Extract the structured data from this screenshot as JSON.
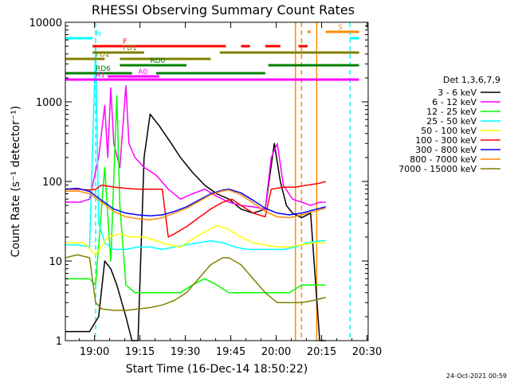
{
  "chart_data": {
    "type": "line",
    "title": "RHESSI Observing Summary Count Rates",
    "xlabel": "Start Time (16-Dec-14 18:50:22)",
    "ylabel": "Count Rate (s⁻¹ detector⁻¹)",
    "xaxis": {
      "unit": "minutes since 18:50:22",
      "range": [
        0,
        100
      ],
      "ticks": [
        {
          "v": 9.6333,
          "label": "19:00"
        },
        {
          "v": 24.6333,
          "label": "19:15"
        },
        {
          "v": 39.6333,
          "label": "19:30"
        },
        {
          "v": 54.6333,
          "label": "19:45"
        },
        {
          "v": 69.6333,
          "label": "20:00"
        },
        {
          "v": 84.6333,
          "label": "20:15"
        },
        {
          "v": 99.6333,
          "label": "20:30"
        }
      ]
    },
    "yaxis": {
      "scale": "log",
      "range": [
        1,
        10000
      ],
      "ticks": [
        {
          "v": 1,
          "label": "1"
        },
        {
          "v": 10,
          "label": "10"
        },
        {
          "v": 100,
          "label": "100"
        },
        {
          "v": 1000,
          "label": "1000"
        },
        {
          "v": 10000,
          "label": "10000"
        }
      ]
    },
    "legend": {
      "title": "Det 1,3,6,7,9",
      "placement": "right"
    },
    "series": [
      {
        "name": "3 - 6 keV",
        "color": "#000000",
        "points": [
          [
            0,
            1.3
          ],
          [
            8,
            1.3
          ],
          [
            11,
            2
          ],
          [
            13,
            10
          ],
          [
            15,
            8
          ],
          [
            17,
            5
          ],
          [
            20,
            2
          ],
          [
            22,
            1
          ],
          [
            24,
            1
          ],
          [
            26,
            200
          ],
          [
            28,
            700
          ],
          [
            31,
            500
          ],
          [
            35,
            300
          ],
          [
            38,
            200
          ],
          [
            42,
            130
          ],
          [
            46,
            90
          ],
          [
            50,
            70
          ],
          [
            54,
            60
          ],
          [
            58,
            45
          ],
          [
            62,
            40
          ],
          [
            66,
            45
          ],
          [
            69,
            300
          ],
          [
            71,
            100
          ],
          [
            73,
            50
          ],
          [
            75,
            40
          ],
          [
            78,
            35
          ],
          [
            81,
            40
          ],
          [
            84,
            1
          ],
          [
            86,
            1
          ]
        ]
      },
      {
        "name": "6 - 12 keV",
        "color": "#ff00ff",
        "points": [
          [
            0,
            55
          ],
          [
            5,
            55
          ],
          [
            8,
            60
          ],
          [
            11,
            200
          ],
          [
            13,
            900
          ],
          [
            14,
            200
          ],
          [
            15,
            1500
          ],
          [
            16,
            300
          ],
          [
            18,
            150
          ],
          [
            20,
            1600
          ],
          [
            21,
            300
          ],
          [
            23,
            200
          ],
          [
            26,
            150
          ],
          [
            30,
            120
          ],
          [
            34,
            80
          ],
          [
            38,
            60
          ],
          [
            42,
            70
          ],
          [
            46,
            80
          ],
          [
            50,
            65
          ],
          [
            54,
            55
          ],
          [
            58,
            50
          ],
          [
            62,
            48
          ],
          [
            66,
            45
          ],
          [
            68,
            200
          ],
          [
            70,
            300
          ],
          [
            72,
            90
          ],
          [
            75,
            60
          ],
          [
            78,
            55
          ],
          [
            81,
            50
          ],
          [
            84,
            55
          ],
          [
            86,
            55
          ]
        ]
      },
      {
        "name": "12 - 25 keV",
        "color": "#00ff00",
        "points": [
          [
            0,
            6
          ],
          [
            8,
            6
          ],
          [
            10,
            5
          ],
          [
            13,
            150
          ],
          [
            15,
            10
          ],
          [
            17,
            1200
          ],
          [
            18,
            50
          ],
          [
            20,
            5
          ],
          [
            23,
            4
          ],
          [
            26,
            4
          ],
          [
            30,
            4
          ],
          [
            34,
            4
          ],
          [
            38,
            4
          ],
          [
            42,
            5
          ],
          [
            46,
            6
          ],
          [
            50,
            5
          ],
          [
            54,
            4
          ],
          [
            58,
            4
          ],
          [
            62,
            4
          ],
          [
            66,
            4
          ],
          [
            70,
            4
          ],
          [
            74,
            4
          ],
          [
            78,
            5
          ],
          [
            82,
            5
          ],
          [
            86,
            5
          ]
        ]
      },
      {
        "name": "25 - 50 keV",
        "color": "#00ffff",
        "points": [
          [
            0,
            16
          ],
          [
            4,
            16
          ],
          [
            8,
            15
          ],
          [
            10,
            5000
          ],
          [
            11,
            30
          ],
          [
            13,
            17
          ],
          [
            16,
            14
          ],
          [
            20,
            14
          ],
          [
            24,
            15
          ],
          [
            28,
            15
          ],
          [
            32,
            14
          ],
          [
            36,
            15
          ],
          [
            40,
            16
          ],
          [
            44,
            17
          ],
          [
            48,
            18
          ],
          [
            52,
            17
          ],
          [
            56,
            15
          ],
          [
            60,
            14
          ],
          [
            64,
            14
          ],
          [
            68,
            14
          ],
          [
            72,
            14
          ],
          [
            76,
            15
          ],
          [
            80,
            17
          ],
          [
            84,
            18
          ],
          [
            86,
            18
          ]
        ]
      },
      {
        "name": "50 - 100 keV",
        "color": "#ffff00",
        "points": [
          [
            0,
            17
          ],
          [
            6,
            17
          ],
          [
            10,
            12
          ],
          [
            14,
            20
          ],
          [
            18,
            22
          ],
          [
            22,
            20
          ],
          [
            26,
            20
          ],
          [
            30,
            18
          ],
          [
            34,
            16
          ],
          [
            38,
            15
          ],
          [
            42,
            19
          ],
          [
            46,
            23
          ],
          [
            50,
            28
          ],
          [
            54,
            25
          ],
          [
            58,
            20
          ],
          [
            62,
            17
          ],
          [
            66,
            16
          ],
          [
            70,
            15
          ],
          [
            74,
            15
          ],
          [
            78,
            16
          ],
          [
            82,
            17
          ],
          [
            86,
            17
          ]
        ]
      },
      {
        "name": "100 - 300 keV",
        "color": "#ff0000",
        "points": [
          [
            0,
            80
          ],
          [
            4,
            80
          ],
          [
            8,
            78
          ],
          [
            10,
            80
          ],
          [
            12,
            90
          ],
          [
            16,
            85
          ],
          [
            20,
            82
          ],
          [
            24,
            80
          ],
          [
            28,
            80
          ],
          [
            32,
            80
          ],
          [
            34,
            20
          ],
          [
            36,
            22
          ],
          [
            40,
            27
          ],
          [
            44,
            35
          ],
          [
            48,
            45
          ],
          [
            52,
            55
          ],
          [
            55,
            60
          ],
          [
            58,
            50
          ],
          [
            62,
            40
          ],
          [
            66,
            36
          ],
          [
            68,
            80
          ],
          [
            72,
            85
          ],
          [
            76,
            85
          ],
          [
            80,
            90
          ],
          [
            84,
            95
          ],
          [
            86,
            100
          ]
        ]
      },
      {
        "name": "300 - 800 keV",
        "color": "#0000ff",
        "points": [
          [
            0,
            80
          ],
          [
            4,
            82
          ],
          [
            8,
            75
          ],
          [
            12,
            58
          ],
          [
            16,
            45
          ],
          [
            20,
            40
          ],
          [
            24,
            38
          ],
          [
            28,
            37
          ],
          [
            32,
            38
          ],
          [
            36,
            42
          ],
          [
            40,
            48
          ],
          [
            44,
            58
          ],
          [
            48,
            70
          ],
          [
            52,
            78
          ],
          [
            54,
            80
          ],
          [
            58,
            72
          ],
          [
            62,
            58
          ],
          [
            66,
            46
          ],
          [
            70,
            40
          ],
          [
            74,
            38
          ],
          [
            78,
            40
          ],
          [
            82,
            44
          ],
          [
            86,
            48
          ]
        ]
      },
      {
        "name": "800 - 7000 keV",
        "color": "#ff8c00",
        "points": [
          [
            0,
            75
          ],
          [
            4,
            76
          ],
          [
            8,
            70
          ],
          [
            12,
            55
          ],
          [
            16,
            42
          ],
          [
            20,
            36
          ],
          [
            24,
            34
          ],
          [
            28,
            33
          ],
          [
            32,
            35
          ],
          [
            36,
            40
          ],
          [
            40,
            46
          ],
          [
            44,
            56
          ],
          [
            48,
            68
          ],
          [
            52,
            76
          ],
          [
            54,
            78
          ],
          [
            58,
            68
          ],
          [
            62,
            54
          ],
          [
            66,
            42
          ],
          [
            70,
            36
          ],
          [
            74,
            35
          ],
          [
            78,
            38
          ],
          [
            82,
            42
          ],
          [
            86,
            46
          ]
        ]
      },
      {
        "name": "7000 - 15000 keV",
        "color": "#808000",
        "points": [
          [
            0,
            11
          ],
          [
            4,
            12
          ],
          [
            8,
            11
          ],
          [
            10,
            3
          ],
          [
            12,
            2.5
          ],
          [
            16,
            2.4
          ],
          [
            20,
            2.4
          ],
          [
            24,
            2.5
          ],
          [
            28,
            2.6
          ],
          [
            32,
            2.8
          ],
          [
            36,
            3.2
          ],
          [
            40,
            4
          ],
          [
            44,
            6
          ],
          [
            48,
            9
          ],
          [
            52,
            11
          ],
          [
            54,
            11
          ],
          [
            58,
            9
          ],
          [
            62,
            6
          ],
          [
            66,
            4
          ],
          [
            70,
            3
          ],
          [
            74,
            3
          ],
          [
            78,
            3
          ],
          [
            82,
            3.2
          ],
          [
            86,
            3.5
          ]
        ]
      }
    ],
    "flag_bars": [
      {
        "label": "N",
        "color": "#00ffff",
        "segments": [
          [
            0,
            9
          ]
        ],
        "end_segments": [
          [
            94,
            97
          ]
        ]
      },
      {
        "label": "F",
        "color": "#ff0000",
        "segments": [
          [
            9,
            53
          ],
          [
            58,
            61
          ],
          [
            66,
            71
          ],
          [
            77,
            80
          ]
        ]
      },
      {
        "label": "S",
        "color": "#ff8c00",
        "segments": [
          [
            80,
            81
          ]
        ],
        "end_segments": [
          [
            86,
            97
          ]
        ]
      },
      {
        "label": "FD1",
        "color": "#808000",
        "segments": [
          [
            9,
            26
          ],
          [
            51,
            97
          ]
        ]
      },
      {
        "label": "FD2",
        "color": "#808000",
        "segments": [
          [
            0,
            13
          ],
          [
            18,
            48
          ]
        ]
      },
      {
        "label": "RD0",
        "color": "#008000",
        "segments": [
          [
            18,
            40
          ],
          [
            67,
            97
          ]
        ]
      },
      {
        "label": "RD6",
        "color": "#008000",
        "segments": [
          [
            0,
            22
          ],
          [
            30,
            66
          ]
        ]
      },
      {
        "label": "A0",
        "color": "#ff00ff",
        "segments": [
          [
            14,
            31
          ]
        ]
      },
      {
        "label": "A1",
        "color": "#ff00ff",
        "segments": [
          [
            0,
            97
          ]
        ]
      }
    ],
    "vlines": [
      {
        "x": 10,
        "color": "#00ffff",
        "style": "dashed"
      },
      {
        "x": 94,
        "color": "#00ffff",
        "style": "dashed"
      },
      {
        "x": 76,
        "color": "#ff8c00",
        "style": "solid"
      },
      {
        "x": 78,
        "color": "#ff8c00",
        "style": "dashed"
      },
      {
        "x": 83,
        "color": "#ff8c00",
        "style": "solid"
      }
    ]
  },
  "footer": {
    "timestamp": "24-Oct-2021 00:59"
  }
}
